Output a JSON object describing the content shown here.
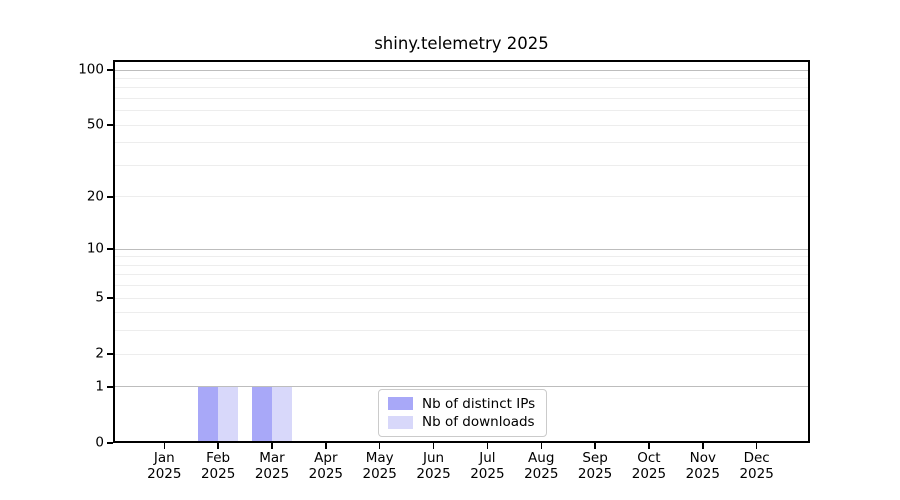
{
  "chart_data": {
    "type": "bar",
    "title": "shiny.telemetry 2025",
    "categories": [
      "Jan 2025",
      "Feb 2025",
      "Mar 2025",
      "Apr 2025",
      "May 2025",
      "Jun 2025",
      "Jul 2025",
      "Aug 2025",
      "Sep 2025",
      "Oct 2025",
      "Nov 2025",
      "Dec 2025"
    ],
    "series": [
      {
        "name": "Nb of distinct IPs",
        "color": "#a8a8f8",
        "values": [
          0,
          1,
          1,
          0,
          0,
          0,
          0,
          0,
          0,
          0,
          0,
          0
        ]
      },
      {
        "name": "Nb of downloads",
        "color": "#d8d8fa",
        "values": [
          0,
          1,
          1,
          0,
          0,
          0,
          0,
          0,
          0,
          0,
          0,
          0
        ]
      }
    ],
    "yscale": "log1p",
    "ylim": [
      0,
      113
    ],
    "ytick_labels": [
      "0",
      "1",
      "2",
      "5",
      "10",
      "20",
      "50",
      "100"
    ],
    "ytick_values": [
      0,
      1,
      2,
      5,
      10,
      20,
      50,
      100
    ],
    "major_grid_values": [
      1,
      10,
      100
    ],
    "minor_grid_values": [
      2,
      3,
      4,
      5,
      6,
      7,
      8,
      9,
      20,
      30,
      40,
      50,
      60,
      70,
      80,
      90
    ],
    "grid": "on",
    "legend_position": "lower center",
    "colors": {
      "bar_distinct_ips": "#a8a8f8",
      "bar_downloads": "#d8d8fa",
      "grid_major": "#bdbdbd",
      "grid_minor": "#ededed",
      "spine": "#000000",
      "text": "#000000",
      "legend_border": "#cbcbcb",
      "background": "#ffffff"
    }
  }
}
